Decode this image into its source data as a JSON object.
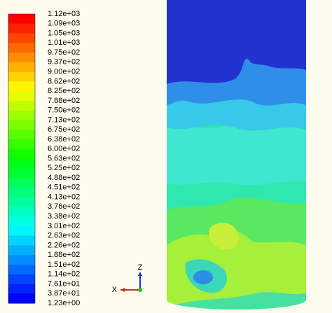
{
  "colorbar": {
    "labels": [
      "1.12e+03",
      "1.09e+03",
      "1.05e+03",
      "1.01e+03",
      "9.75e+02",
      "9.37e+02",
      "9.00e+02",
      "8.62e+02",
      "8.25e+02",
      "7.88e+02",
      "7.50e+02",
      "7.13e+02",
      "6.75e+02",
      "6.38e+02",
      "6.00e+02",
      "5.63e+02",
      "5.25e+02",
      "4.88e+02",
      "4.51e+02",
      "4.13e+02",
      "3.76e+02",
      "3.38e+02",
      "3.01e+02",
      "2.63e+02",
      "2.26e+02",
      "1.88e+02",
      "1.51e+02",
      "1.14e+02",
      "7.61e+01",
      "3.87e+01",
      "1.23e+00"
    ]
  },
  "axes_triad": {
    "labels": [
      "Z",
      "X"
    ]
  }
}
